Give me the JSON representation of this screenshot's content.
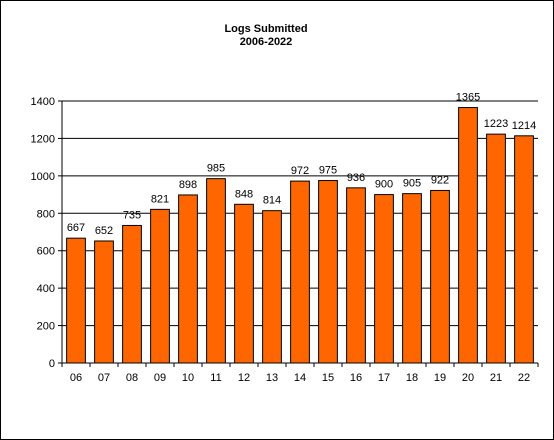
{
  "chart_data": {
    "type": "bar",
    "title": "Logs Submitted",
    "subtitle": "2006-2022",
    "xlabel": "",
    "ylabel": "",
    "categories": [
      "06",
      "07",
      "08",
      "09",
      "10",
      "11",
      "12",
      "13",
      "14",
      "15",
      "16",
      "17",
      "18",
      "19",
      "20",
      "21",
      "22"
    ],
    "values": [
      667,
      652,
      735,
      821,
      898,
      985,
      848,
      814,
      972,
      975,
      936,
      900,
      905,
      922,
      1365,
      1223,
      1214
    ],
    "ylim": [
      0,
      1400
    ],
    "yticks": [
      0,
      200,
      400,
      600,
      800,
      1000,
      1200,
      1400
    ],
    "grid": "horizontal",
    "legend": "none",
    "bar_color": "#FF6600",
    "bar_edge_color": "#000000",
    "show_data_labels": true
  }
}
